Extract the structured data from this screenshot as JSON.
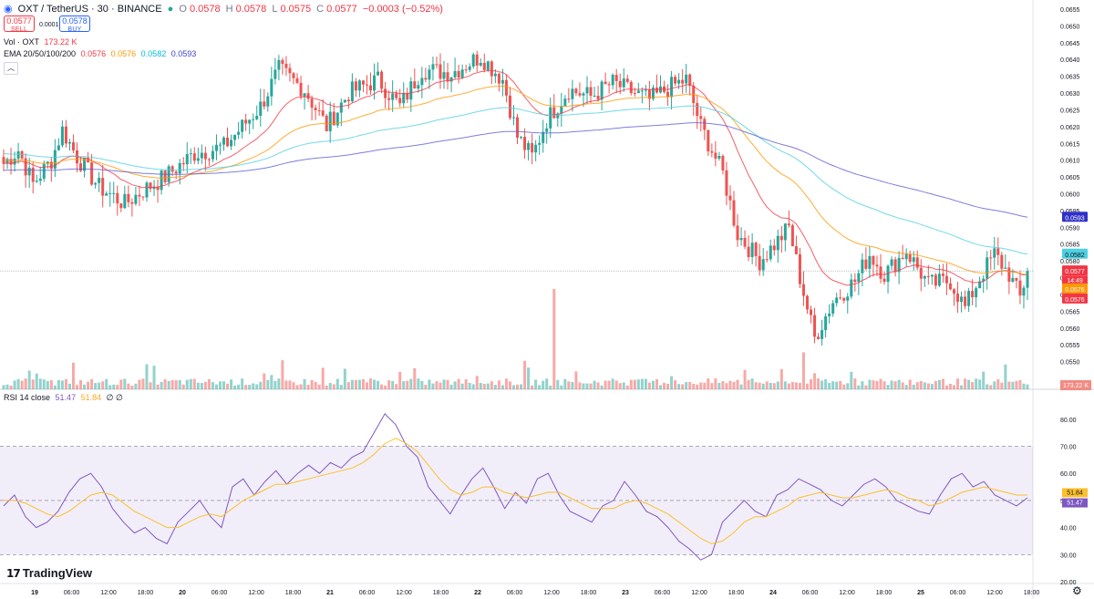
{
  "header": {
    "symbol": "OXT / TetherUS · 30 · BINANCE",
    "o_label": "O",
    "o_value": "0.0578",
    "h_label": "H",
    "h_value": "0.0578",
    "l_label": "L",
    "l_value": "0.0575",
    "c_label": "C",
    "c_value": "0.0577",
    "change": "−0.0003 (−0.52%)"
  },
  "trade": {
    "sell_price": "0.0577",
    "sell_label": "SELL",
    "spread": "0.0001",
    "buy_price": "0.0578",
    "buy_label": "BUY"
  },
  "vol_legend": {
    "label": "Vol · OXT",
    "value": "173.22 K"
  },
  "ema_legend": {
    "label": "EMA 20/50/100/200",
    "v20": "0.0576",
    "v50": "0.0576",
    "v100": "0.0582",
    "v200": "0.0593"
  },
  "rsi_legend": {
    "label": "RSI 14 close",
    "rsi": "51.47",
    "ma": "51.84",
    "extra": "∅ ∅"
  },
  "collapse_icon": "chevron-up",
  "logo_text": "TradingView",
  "colors": {
    "up": "#26a69a",
    "down": "#ef5350",
    "ema20": "#f23645",
    "ema50": "#ff9800",
    "ema100": "#4dd0e1",
    "ema200": "#5c5cd6",
    "rsi": "#7e57c2",
    "rsi_ma": "#fbc02d"
  },
  "chart_data": [
    {
      "type": "candlestick",
      "title": "OXT / TetherUS · 30 · BINANCE",
      "ylim": [
        0.0545,
        0.0655
      ],
      "y_ticks": [
        "0.0550",
        "0.0555",
        "0.0560",
        "0.0565",
        "0.0570",
        "0.0575",
        "0.0580",
        "0.0585",
        "0.0590",
        "0.0595",
        "0.0600",
        "0.0605",
        "0.0610",
        "0.0615",
        "0.0620",
        "0.0625",
        "0.0630",
        "0.0635",
        "0.0640",
        "0.0645",
        "0.0650",
        "0.0655"
      ],
      "x_tick_labels": [
        "19",
        "06:00",
        "12:00",
        "18:00",
        "20",
        "06:00",
        "12:00",
        "18:00",
        "21",
        "06:00",
        "12:00",
        "18:00",
        "22",
        "06:00",
        "12:00",
        "18:00",
        "23",
        "06:00",
        "12:00",
        "18:00",
        "24",
        "06:00",
        "12:00",
        "18:00",
        "25",
        "06:00",
        "12:00",
        "18:00"
      ],
      "close_anchors": [
        [
          0,
          0.0609
        ],
        [
          4,
          0.0613
        ],
        [
          8,
          0.0603
        ],
        [
          13,
          0.061
        ],
        [
          16,
          0.0619
        ],
        [
          20,
          0.0611
        ],
        [
          26,
          0.0602
        ],
        [
          33,
          0.0597
        ],
        [
          38,
          0.0601
        ],
        [
          44,
          0.0605
        ],
        [
          52,
          0.0612
        ],
        [
          60,
          0.0614
        ],
        [
          70,
          0.0626
        ],
        [
          75,
          0.0637
        ],
        [
          82,
          0.0631
        ],
        [
          88,
          0.062
        ],
        [
          94,
          0.063
        ],
        [
          102,
          0.0634
        ],
        [
          108,
          0.0626
        ],
        [
          114,
          0.0637
        ],
        [
          122,
          0.0636
        ],
        [
          130,
          0.0641
        ],
        [
          136,
          0.0634
        ],
        [
          140,
          0.0617
        ],
        [
          144,
          0.0611
        ],
        [
          148,
          0.0622
        ],
        [
          154,
          0.0631
        ],
        [
          160,
          0.0629
        ],
        [
          166,
          0.0633
        ],
        [
          172,
          0.063
        ],
        [
          176,
          0.0628
        ],
        [
          182,
          0.0632
        ],
        [
          186,
          0.0634
        ],
        [
          190,
          0.062
        ],
        [
          196,
          0.0606
        ],
        [
          200,
          0.0588
        ],
        [
          206,
          0.058
        ],
        [
          211,
          0.0586
        ],
        [
          214,
          0.059
        ],
        [
          217,
          0.0575
        ],
        [
          221,
          0.0557
        ],
        [
          226,
          0.0568
        ],
        [
          232,
          0.0574
        ],
        [
          236,
          0.0582
        ],
        [
          240,
          0.0576
        ],
        [
          246,
          0.0583
        ],
        [
          252,
          0.0573
        ],
        [
          258,
          0.0574
        ],
        [
          262,
          0.0566
        ],
        [
          266,
          0.0575
        ],
        [
          270,
          0.0582
        ],
        [
          274,
          0.0576
        ],
        [
          277,
          0.0569
        ],
        [
          279,
          0.0577
        ]
      ],
      "volume_peaks": [
        [
          76,
          "55K"
        ],
        [
          150,
          "190K"
        ],
        [
          218,
          "70K"
        ]
      ],
      "emas": [
        {
          "name": "EMA 20",
          "last": 0.0576
        },
        {
          "name": "EMA 50",
          "last": 0.0576
        },
        {
          "name": "EMA 100",
          "last": 0.0582
        },
        {
          "name": "EMA 200",
          "last": 0.0593
        }
      ],
      "price_tags": {
        "ema200": "0.0593",
        "ema100": "0.0582",
        "last": "0.0577",
        "countdown": "14:49",
        "ema50": "0.0576",
        "ema20": "0.0576",
        "volume": "173.22 K"
      }
    },
    {
      "type": "line",
      "title": "RSI 14 close",
      "ylim": [
        20,
        85
      ],
      "y_ticks": [
        "20.00",
        "30.00",
        "40.00",
        "50.00",
        "60.00",
        "70.00",
        "80.00"
      ],
      "bands": [
        30,
        70
      ],
      "series": [
        {
          "name": "RSI",
          "values": [
            48,
            52,
            44,
            40,
            42,
            46,
            53,
            58,
            60,
            55,
            47,
            42,
            38,
            40,
            36,
            34,
            42,
            46,
            50,
            44,
            40,
            55,
            58,
            52,
            57,
            61,
            56,
            60,
            63,
            60,
            64,
            62,
            66,
            68,
            75,
            82,
            78,
            70,
            66,
            55,
            50,
            45,
            52,
            58,
            62,
            55,
            47,
            53,
            49,
            58,
            60,
            52,
            46,
            44,
            42,
            48,
            50,
            57,
            52,
            46,
            44,
            40,
            35,
            32,
            28,
            30,
            42,
            46,
            50,
            46,
            44,
            52,
            54,
            58,
            56,
            54,
            50,
            48,
            52,
            56,
            58,
            55,
            50,
            48,
            46,
            45,
            52,
            58,
            60,
            55,
            57,
            52,
            50,
            48,
            51
          ]
        },
        {
          "name": "RSI MA",
          "values": [
            50,
            50,
            49,
            47,
            45,
            44,
            46,
            49,
            52,
            53,
            52,
            49,
            46,
            44,
            42,
            40,
            40,
            42,
            44,
            45,
            44,
            47,
            50,
            52,
            54,
            56,
            56,
            57,
            58,
            59,
            60,
            61,
            62,
            64,
            67,
            71,
            73,
            71,
            68,
            63,
            58,
            54,
            52,
            53,
            55,
            55,
            53,
            52,
            51,
            52,
            53,
            53,
            51,
            49,
            47,
            47,
            47,
            49,
            50,
            49,
            47,
            45,
            42,
            39,
            36,
            34,
            35,
            38,
            42,
            44,
            44,
            46,
            48,
            51,
            52,
            53,
            52,
            51,
            51,
            52,
            53,
            54,
            53,
            51,
            50,
            48,
            49,
            51,
            53,
            54,
            55,
            54,
            53,
            52,
            52
          ]
        }
      ],
      "last_values": {
        "ma": "51.84",
        "rsi": "51.47"
      }
    }
  ]
}
